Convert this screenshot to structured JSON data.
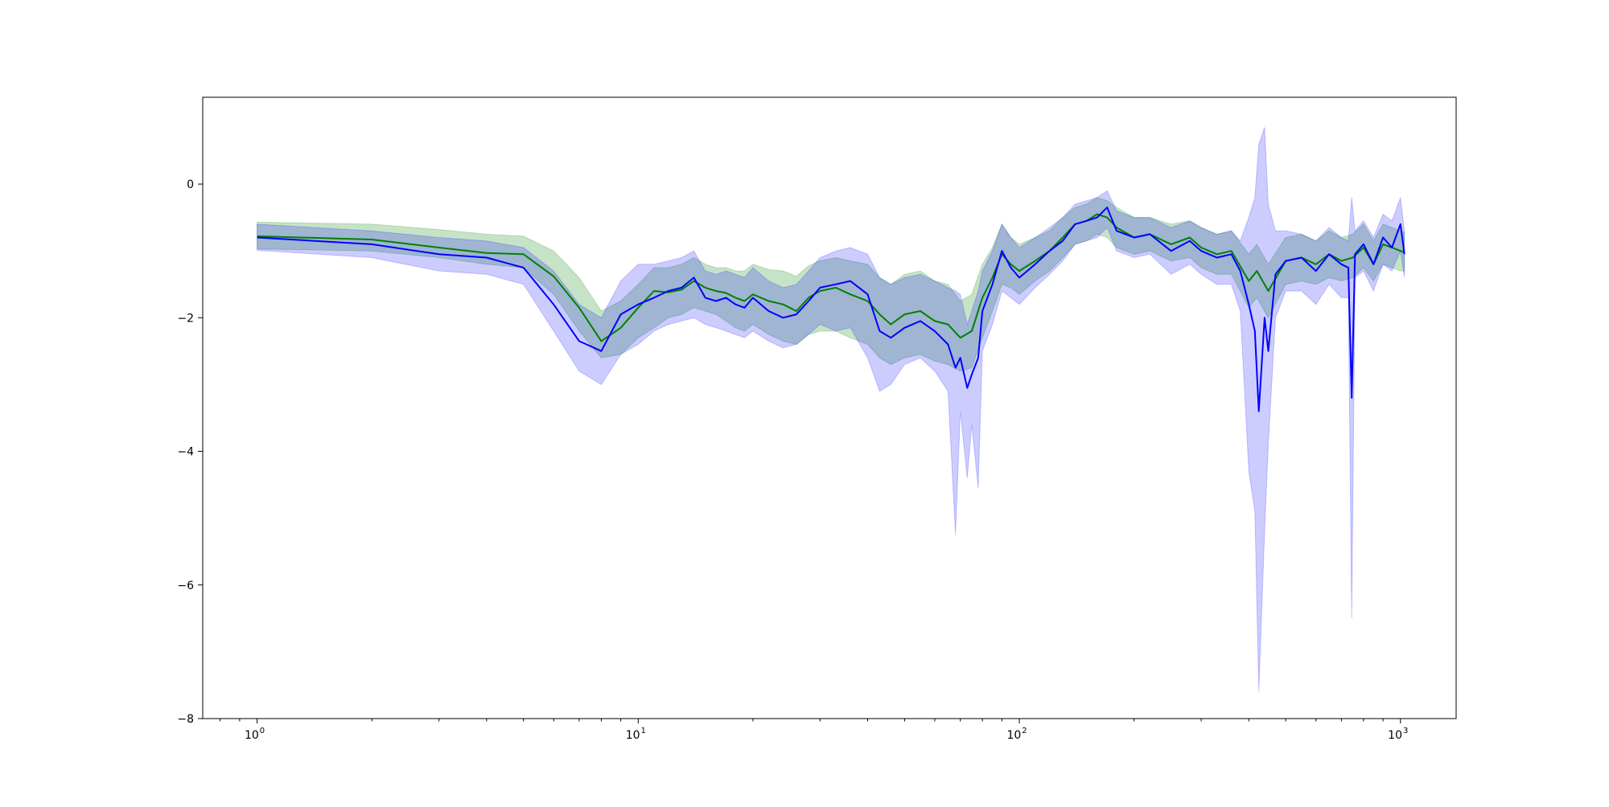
{
  "chart_data": {
    "type": "line",
    "title": "",
    "xlabel": "",
    "ylabel": "",
    "x_scale": "log",
    "xlim": [
      0.72,
      1400
    ],
    "ylim": [
      -8,
      1.3
    ],
    "grid": false,
    "legend": "none",
    "x_major_ticks": [
      1,
      10,
      100,
      1000
    ],
    "x_tick_labels": [
      {
        "base": "10",
        "exp": "0"
      },
      {
        "base": "10",
        "exp": "1"
      },
      {
        "base": "10",
        "exp": "2"
      },
      {
        "base": "10",
        "exp": "3"
      }
    ],
    "y_ticks": [
      0,
      -2,
      -4,
      -6,
      -8
    ],
    "y_tick_labels": [
      "0",
      "−2",
      "−4",
      "−6",
      "−8"
    ],
    "series": [
      {
        "color": "#008000",
        "band_color": "#008000",
        "band_opacity": 0.22,
        "x": [
          1,
          2,
          3,
          4,
          5,
          6,
          7,
          8,
          9,
          10,
          11,
          12,
          13,
          14,
          15,
          16,
          17,
          18,
          19,
          20,
          22,
          24,
          26,
          28,
          30,
          33,
          36,
          40,
          43,
          46,
          50,
          55,
          60,
          65,
          70,
          75,
          80,
          85,
          90,
          95,
          100,
          110,
          120,
          130,
          140,
          150,
          160,
          170,
          180,
          200,
          220,
          250,
          280,
          300,
          330,
          360,
          400,
          420,
          450,
          500,
          550,
          600,
          650,
          700,
          750,
          800,
          850,
          900,
          950,
          1000,
          1024
        ],
        "y": [
          -0.78,
          -0.83,
          -0.95,
          -1.03,
          -1.05,
          -1.38,
          -1.85,
          -2.35,
          -2.15,
          -1.85,
          -1.6,
          -1.62,
          -1.58,
          -1.45,
          -1.55,
          -1.6,
          -1.63,
          -1.7,
          -1.75,
          -1.65,
          -1.75,
          -1.8,
          -1.9,
          -1.7,
          -1.6,
          -1.55,
          -1.65,
          -1.75,
          -1.95,
          -2.1,
          -1.95,
          -1.9,
          -2.05,
          -2.1,
          -2.3,
          -2.2,
          -1.7,
          -1.4,
          -1.05,
          -1.2,
          -1.3,
          -1.15,
          -1.0,
          -0.8,
          -0.6,
          -0.55,
          -0.45,
          -0.5,
          -0.65,
          -0.8,
          -0.75,
          -0.9,
          -0.8,
          -0.95,
          -1.05,
          -1.0,
          -1.45,
          -1.3,
          -1.6,
          -1.15,
          -1.1,
          -1.2,
          -1.05,
          -1.15,
          -1.1,
          -0.95,
          -1.2,
          -0.9,
          -0.95,
          -1.0,
          -1.02
        ],
        "lower": [
          -0.97,
          -1.0,
          -1.1,
          -1.2,
          -1.25,
          -1.65,
          -2.2,
          -2.6,
          -2.55,
          -2.3,
          -2.15,
          -2.0,
          -1.95,
          -1.85,
          -1.9,
          -1.95,
          -2.05,
          -2.15,
          -2.2,
          -2.1,
          -2.25,
          -2.35,
          -2.4,
          -2.25,
          -2.2,
          -2.2,
          -2.3,
          -2.4,
          -2.6,
          -2.7,
          -2.6,
          -2.55,
          -2.65,
          -2.7,
          -2.8,
          -2.75,
          -2.3,
          -1.9,
          -1.5,
          -1.55,
          -1.65,
          -1.45,
          -1.3,
          -1.1,
          -0.9,
          -0.85,
          -0.75,
          -0.8,
          -0.95,
          -1.05,
          -1.0,
          -1.15,
          -1.1,
          -1.25,
          -1.35,
          -1.35,
          -1.85,
          -1.7,
          -2.0,
          -1.5,
          -1.45,
          -1.5,
          -1.4,
          -1.45,
          -1.4,
          -1.25,
          -1.45,
          -1.2,
          -1.25,
          -1.3,
          -1.3
        ],
        "upper": [
          -0.57,
          -0.6,
          -0.68,
          -0.75,
          -0.78,
          -1.0,
          -1.4,
          -1.9,
          -1.75,
          -1.5,
          -1.25,
          -1.25,
          -1.2,
          -1.1,
          -1.2,
          -1.25,
          -1.25,
          -1.3,
          -1.3,
          -1.2,
          -1.28,
          -1.3,
          -1.38,
          -1.22,
          -1.15,
          -1.1,
          -1.15,
          -1.2,
          -1.4,
          -1.5,
          -1.35,
          -1.3,
          -1.45,
          -1.5,
          -1.75,
          -1.65,
          -1.2,
          -0.95,
          -0.6,
          -0.8,
          -0.9,
          -0.8,
          -0.7,
          -0.5,
          -0.35,
          -0.3,
          -0.2,
          -0.25,
          -0.35,
          -0.5,
          -0.5,
          -0.6,
          -0.55,
          -0.65,
          -0.75,
          -0.7,
          -1.05,
          -0.9,
          -1.2,
          -0.8,
          -0.75,
          -0.85,
          -0.7,
          -0.8,
          -0.75,
          -0.6,
          -0.85,
          -0.6,
          -0.65,
          -0.7,
          -0.72
        ]
      },
      {
        "color": "#0000ff",
        "band_color": "#0000ff",
        "band_opacity": 0.2,
        "x": [
          1,
          2,
          3,
          4,
          5,
          6,
          7,
          8,
          9,
          10,
          11,
          12,
          13,
          14,
          15,
          16,
          17,
          18,
          19,
          20,
          22,
          24,
          26,
          28,
          30,
          33,
          36,
          40,
          43,
          46,
          50,
          55,
          60,
          65,
          68,
          70,
          73,
          75,
          78,
          80,
          85,
          90,
          95,
          100,
          110,
          120,
          130,
          140,
          150,
          160,
          170,
          180,
          200,
          220,
          250,
          280,
          300,
          330,
          360,
          380,
          400,
          415,
          425,
          440,
          450,
          470,
          500,
          550,
          600,
          650,
          700,
          730,
          745,
          760,
          800,
          850,
          900,
          950,
          1000,
          1024
        ],
        "y": [
          -0.8,
          -0.9,
          -1.05,
          -1.1,
          -1.25,
          -1.8,
          -2.35,
          -2.5,
          -1.95,
          -1.8,
          -1.7,
          -1.6,
          -1.55,
          -1.4,
          -1.7,
          -1.75,
          -1.7,
          -1.8,
          -1.85,
          -1.7,
          -1.9,
          -2.0,
          -1.95,
          -1.75,
          -1.55,
          -1.5,
          -1.45,
          -1.65,
          -2.2,
          -2.3,
          -2.15,
          -2.05,
          -2.2,
          -2.4,
          -2.75,
          -2.6,
          -3.05,
          -2.85,
          -2.6,
          -1.9,
          -1.5,
          -1.0,
          -1.25,
          -1.4,
          -1.2,
          -1.0,
          -0.85,
          -0.6,
          -0.55,
          -0.5,
          -0.35,
          -0.7,
          -0.8,
          -0.75,
          -1.0,
          -0.85,
          -1.0,
          -1.1,
          -1.05,
          -1.3,
          -1.8,
          -2.2,
          -3.4,
          -2.0,
          -2.5,
          -1.35,
          -1.15,
          -1.1,
          -1.3,
          -1.05,
          -1.2,
          -1.25,
          -3.2,
          -1.05,
          -0.9,
          -1.2,
          -0.8,
          -0.95,
          -0.6,
          -1.05
        ],
        "lower": [
          -0.99,
          -1.1,
          -1.3,
          -1.35,
          -1.5,
          -2.2,
          -2.8,
          -3.0,
          -2.55,
          -2.4,
          -2.2,
          -2.1,
          -2.05,
          -2.0,
          -2.1,
          -2.15,
          -2.2,
          -2.25,
          -2.3,
          -2.2,
          -2.35,
          -2.45,
          -2.4,
          -2.25,
          -2.1,
          -2.2,
          -2.15,
          -2.6,
          -3.1,
          -3.0,
          -2.7,
          -2.6,
          -2.8,
          -3.1,
          -5.25,
          -3.4,
          -4.4,
          -3.6,
          -4.55,
          -2.5,
          -2.1,
          -1.6,
          -1.7,
          -1.8,
          -1.55,
          -1.35,
          -1.15,
          -0.9,
          -0.85,
          -0.8,
          -0.65,
          -1.0,
          -1.1,
          -1.05,
          -1.35,
          -1.2,
          -1.35,
          -1.5,
          -1.5,
          -1.9,
          -4.3,
          -4.9,
          -7.6,
          -5.2,
          -3.9,
          -2.0,
          -1.6,
          -1.6,
          -1.8,
          -1.5,
          -1.7,
          -1.7,
          -6.5,
          -1.4,
          -1.3,
          -1.6,
          -1.2,
          -1.3,
          -1.0,
          -1.4
        ],
        "upper": [
          -0.6,
          -0.7,
          -0.8,
          -0.85,
          -0.95,
          -1.3,
          -1.8,
          -2.0,
          -1.45,
          -1.2,
          -1.2,
          -1.15,
          -1.1,
          -1.0,
          -1.3,
          -1.35,
          -1.3,
          -1.35,
          -1.4,
          -1.25,
          -1.45,
          -1.55,
          -1.5,
          -1.3,
          -1.1,
          -1.0,
          -0.95,
          -1.05,
          -1.4,
          -1.5,
          -1.4,
          -1.35,
          -1.45,
          -1.55,
          -1.6,
          -1.65,
          -2.1,
          -1.9,
          -1.6,
          -1.3,
          -1.0,
          -0.6,
          -0.8,
          -0.95,
          -0.8,
          -0.65,
          -0.5,
          -0.3,
          -0.25,
          -0.2,
          -0.1,
          -0.4,
          -0.5,
          -0.5,
          -0.65,
          -0.55,
          -0.65,
          -0.75,
          -0.7,
          -0.85,
          -0.5,
          -0.2,
          0.6,
          0.85,
          -0.3,
          -0.7,
          -0.7,
          -0.75,
          -0.85,
          -0.65,
          -0.8,
          -0.85,
          -0.2,
          -0.7,
          -0.55,
          -0.8,
          -0.45,
          -0.55,
          -0.2,
          -0.7
        ]
      }
    ]
  }
}
